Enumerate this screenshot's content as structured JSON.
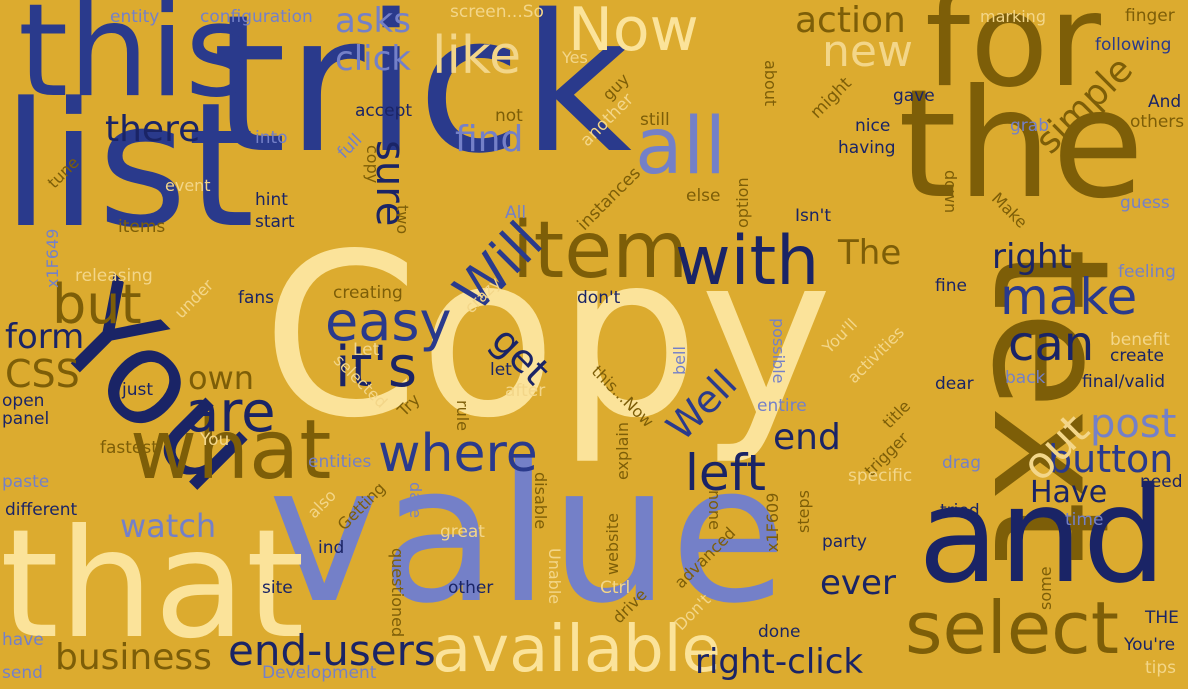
{
  "background": "#dcab2f",
  "palette": {
    "royal_blue": "#2a3a8c",
    "navy": "#1a2466",
    "cream": "#fbe39a",
    "olive_brown": "#7d5e08",
    "periwinkle": "#7480c8",
    "pale_yellow": "#f3d689",
    "muted_gold": "#b68b1c"
  },
  "words": [
    "Copy",
    "value",
    "trick",
    "text",
    "the",
    "and",
    "list",
    "this",
    "that",
    "for",
    "You",
    "item",
    "with",
    "select",
    "available",
    "what",
    "Now",
    "all",
    "where",
    "make",
    "it's",
    "easy",
    "are",
    "but",
    "can",
    "Will",
    "end-users",
    "business",
    "right-click",
    "button",
    "left",
    "post",
    "out",
    "end",
    "new",
    "action",
    "like",
    "asks",
    "click",
    "simple",
    "right",
    "The",
    "there",
    "find",
    "sure",
    "form",
    "CSS",
    "own",
    "get",
    "Well",
    "watch",
    "ever",
    "Have",
    "entity",
    "configuration",
    "screen...So",
    "marking",
    "finger",
    "following",
    "Yes",
    "about",
    "guy",
    "might",
    "And",
    "gave",
    "others",
    "grab",
    "nice",
    "having",
    "still",
    "another",
    "not",
    "accept",
    "full",
    "copy",
    "into",
    "tune",
    "event",
    "hint",
    "start",
    "items",
    "x1F649",
    "releasing",
    "fans",
    "under",
    "two",
    "All",
    "crazy",
    "creating",
    "don't",
    "instances",
    "option",
    "else",
    "down",
    "Make",
    "Isn't",
    "guess",
    "feeling",
    "benefit",
    "create",
    "final/valid",
    "back",
    "dear",
    "fine",
    "You'll",
    "activities",
    "possible",
    "bell",
    "Let",
    "selected",
    "Try",
    "let",
    "this...Now",
    "after",
    "rule",
    "just",
    "open",
    "panel",
    "You",
    "fastest",
    "entire",
    "title",
    "trigger",
    "drag",
    "specific",
    "steps",
    "x1F609",
    "explain",
    "entities",
    "paste",
    "different",
    "also",
    "Getting",
    "date",
    "disable",
    "ind",
    "great",
    "website",
    "advanced",
    "none",
    "tried",
    "need",
    "time",
    "party",
    "some",
    "questioned",
    "Unable",
    "Ctrl",
    "site",
    "other",
    "drive",
    "Don't",
    "done",
    "THE",
    "You're",
    "have",
    "send",
    "Development",
    "tips"
  ]
}
